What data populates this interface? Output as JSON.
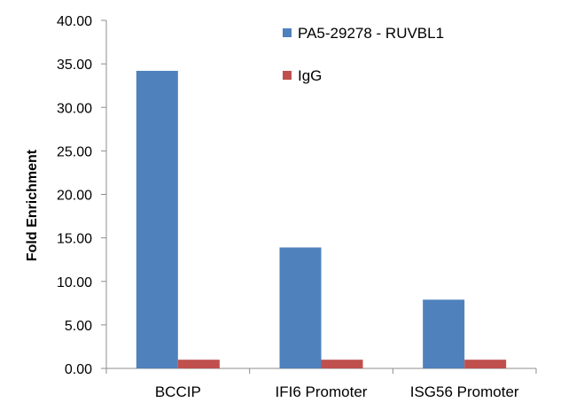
{
  "chart_data": {
    "type": "bar",
    "title": "",
    "xlabel": "",
    "ylabel": "Fold Enrichment",
    "ylim": [
      0,
      40
    ],
    "yticks": [
      "0.00",
      "5.00",
      "10.00",
      "15.00",
      "20.00",
      "25.00",
      "30.00",
      "35.00",
      "40.00"
    ],
    "grid": false,
    "legend_position": "top-right",
    "categories": [
      "BCCIP",
      "IFI6 Promoter",
      "ISG56 Promoter"
    ],
    "series": [
      {
        "name": "PA5-29278 - RUVBL1",
        "color": "#4f81bd",
        "values": [
          34.2,
          13.9,
          7.9
        ]
      },
      {
        "name": "IgG",
        "color": "#c0504d",
        "values": [
          1.0,
          1.0,
          1.0
        ]
      }
    ]
  }
}
